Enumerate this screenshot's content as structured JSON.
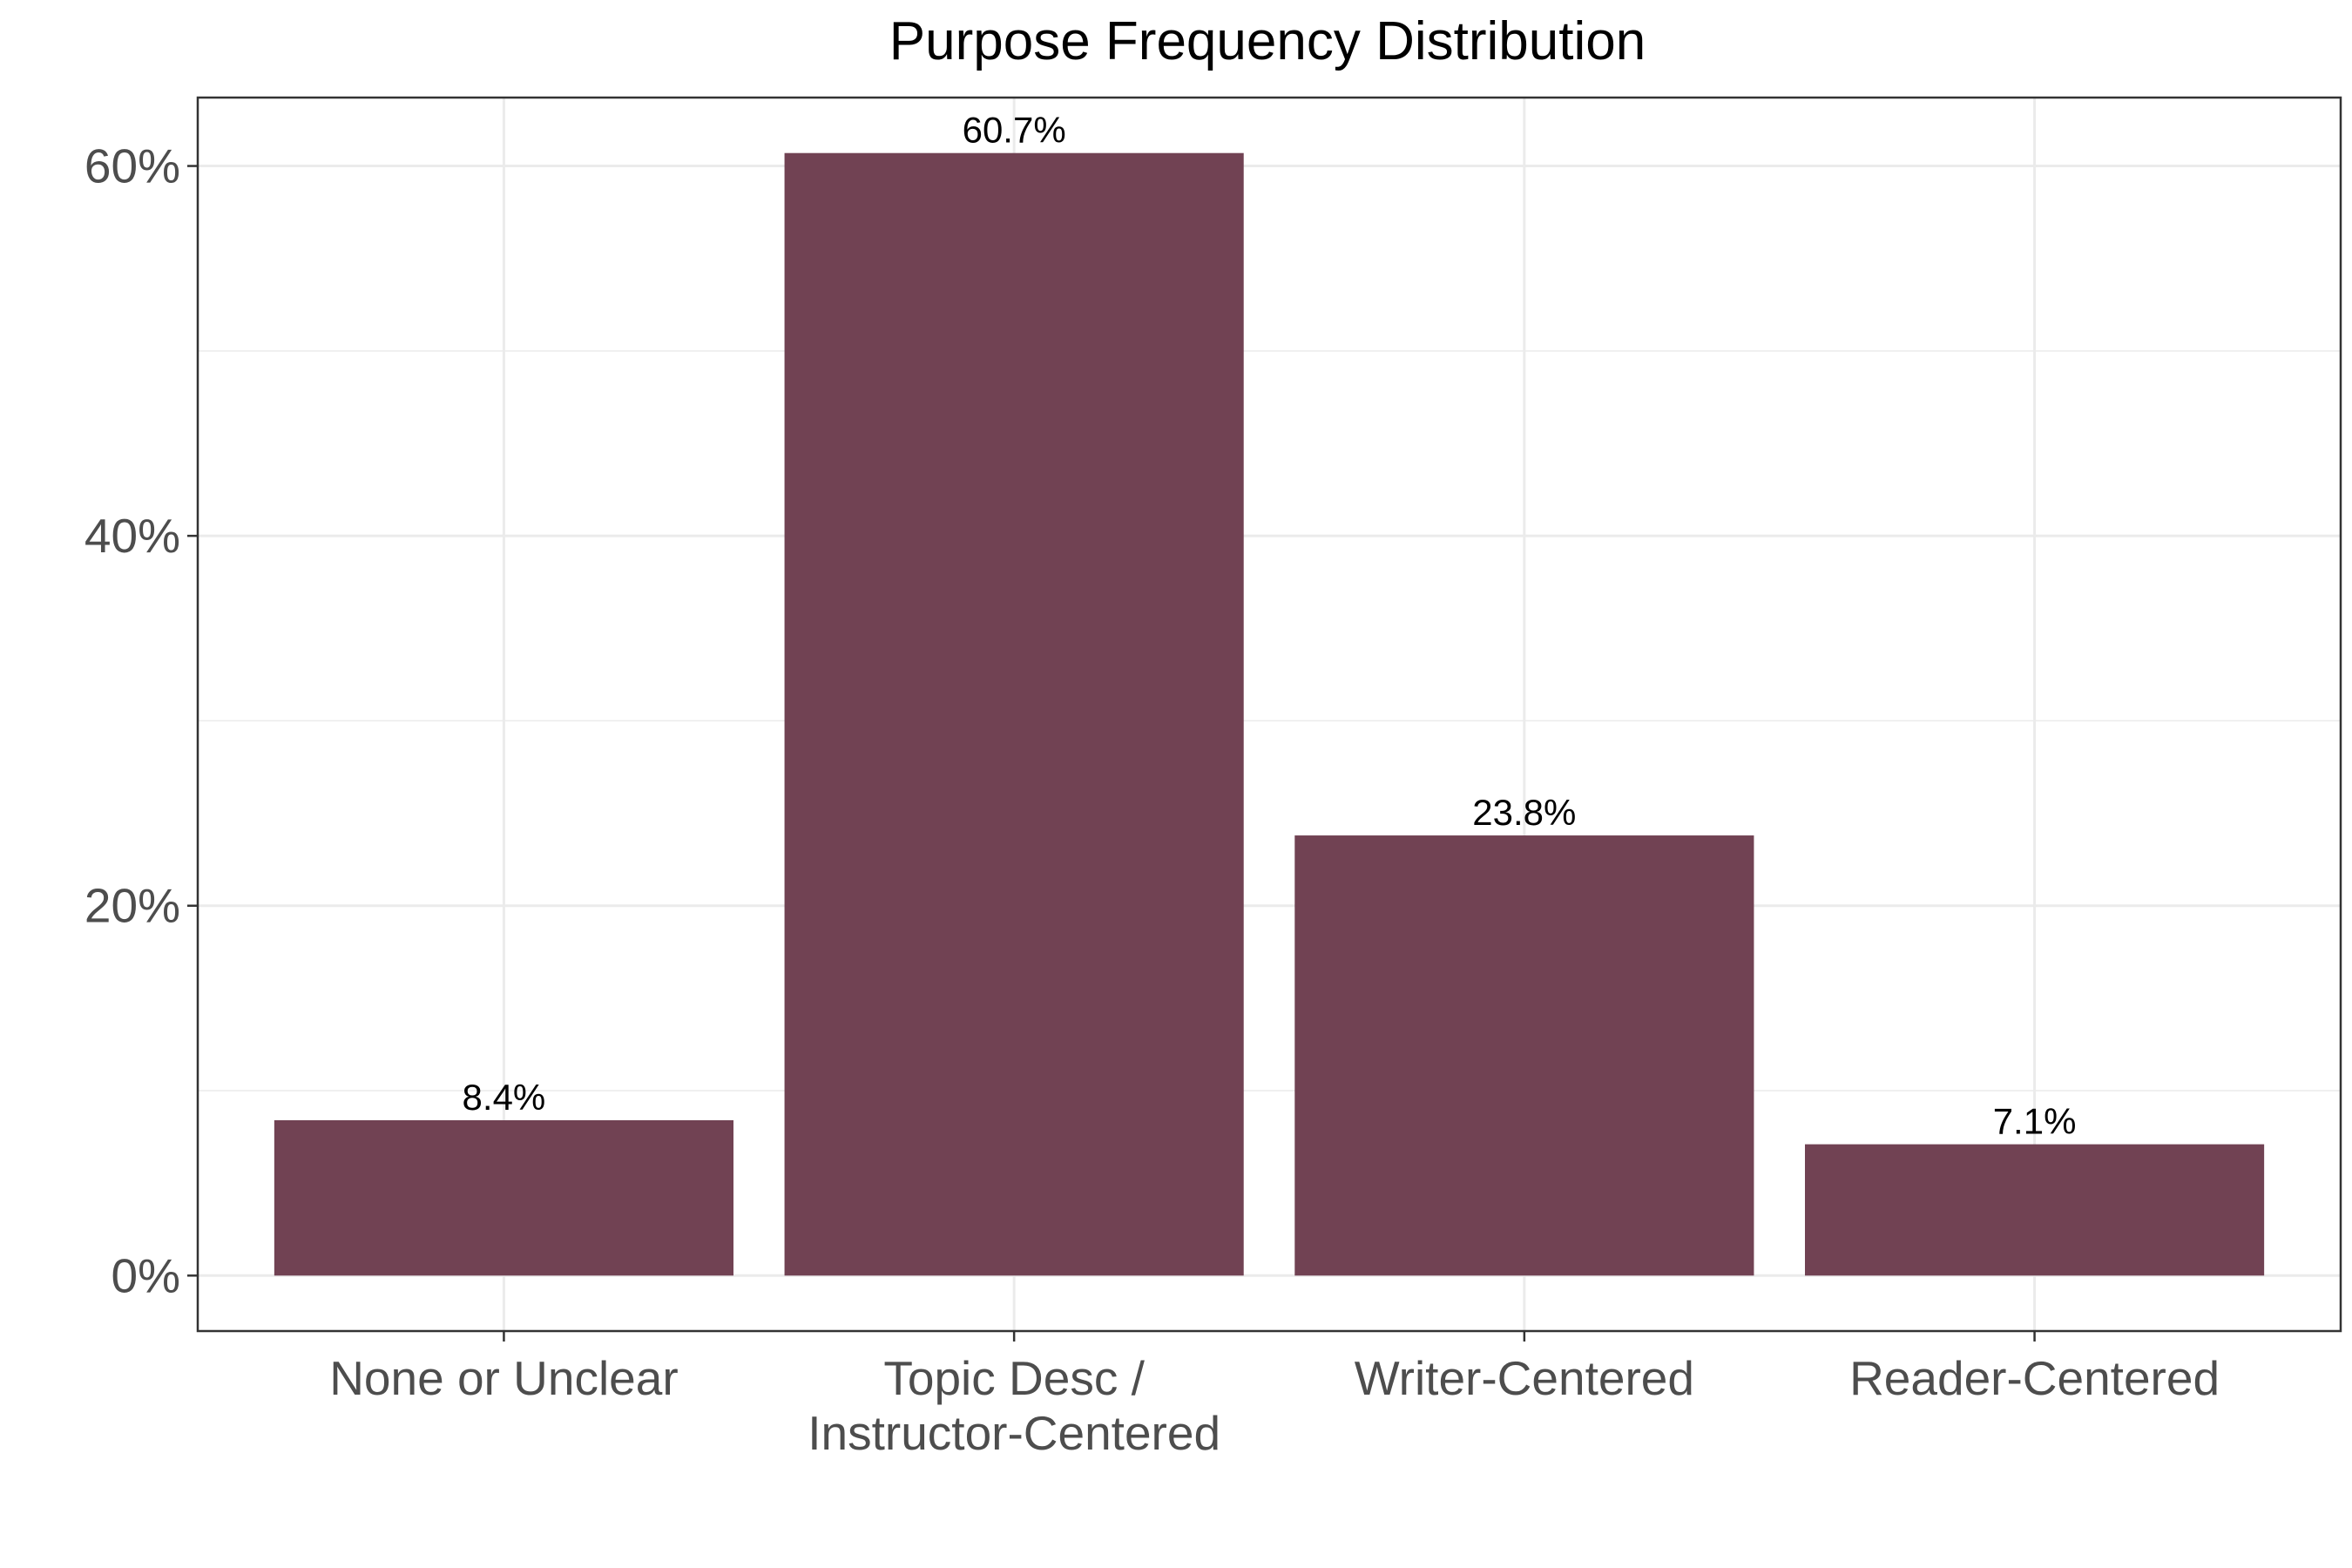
{
  "chart_data": {
    "type": "bar",
    "title": "Purpose Frequency Distribution",
    "xlabel": "",
    "ylabel": "",
    "categories": [
      [
        "None or Unclear"
      ],
      [
        "Topic Desc /",
        "Instructor-Centered"
      ],
      [
        "Writer-Centered"
      ],
      [
        "Reader-Centered"
      ]
    ],
    "values": [
      8.4,
      60.7,
      23.8,
      7.1
    ],
    "data_labels": [
      "8.4%",
      "60.7%",
      "23.8%",
      "7.1%"
    ],
    "ylim": [
      -3,
      63.7
    ],
    "y_ticks": [
      0,
      20,
      40,
      60
    ],
    "y_tick_labels": [
      "0%",
      "20%",
      "40%",
      "60%"
    ],
    "y_minor_ticks": [
      10,
      30,
      50
    ],
    "grid": true,
    "legend": "none",
    "colors": {
      "bar": "#714253",
      "grid": "#ebebeb",
      "panel_border": "#333333",
      "axis_text": "#4d4d4d"
    }
  }
}
